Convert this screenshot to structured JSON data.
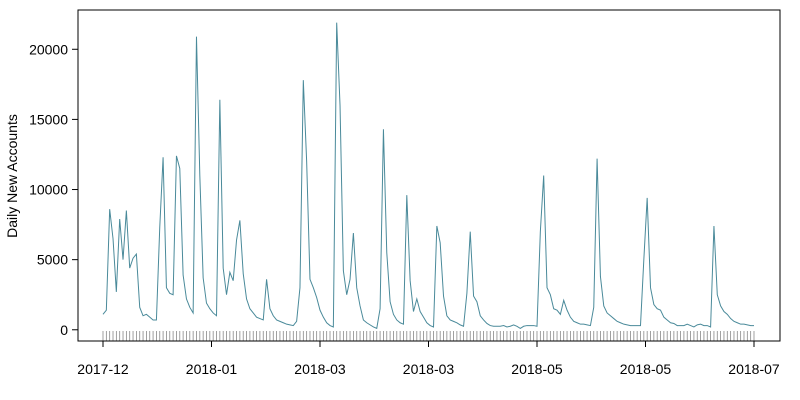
{
  "chart_data": {
    "type": "line",
    "title": "",
    "xlabel": "",
    "ylabel": "Daily New Accounts",
    "x_tick_labels": [
      "2017-12",
      "2018-01",
      "2018-03",
      "2018-03",
      "2018-05",
      "2018-05",
      "2018-07"
    ],
    "y_ticks": [
      0,
      5000,
      10000,
      15000,
      20000
    ],
    "ylim": [
      -800,
      22800
    ],
    "grid": false,
    "rug": true,
    "colors": {
      "line": "#4a8a9a",
      "axis": "#000000",
      "rug": "#888888"
    },
    "series": [
      {
        "values": [
          1100,
          1400,
          8600,
          6500,
          2700,
          7900,
          5000,
          8500,
          4400,
          5100,
          5400,
          1600,
          1000,
          1100,
          900,
          700,
          700,
          7300,
          12300,
          3000,
          2600,
          2500,
          12400,
          11500,
          3900,
          2200,
          1600,
          1200,
          20900,
          11000,
          3700,
          1900,
          1500,
          1200,
          1000,
          16400,
          4400,
          2500,
          4100,
          3500,
          6400,
          7800,
          4000,
          2200,
          1500,
          1200,
          900,
          800,
          700,
          3600,
          1500,
          1000,
          700,
          600,
          500,
          400,
          350,
          300,
          600,
          3000,
          17800,
          12000,
          3600,
          3000,
          2300,
          1400,
          900,
          500,
          300,
          200,
          21900,
          16000,
          4200,
          2500,
          3600,
          6900,
          3000,
          1700,
          700,
          500,
          350,
          200,
          100,
          1500,
          14300,
          5500,
          2000,
          1100,
          700,
          500,
          400,
          9600,
          3500,
          1300,
          2200,
          1300,
          900,
          500,
          300,
          200,
          7400,
          6200,
          2400,
          1000,
          700,
          600,
          500,
          350,
          250,
          2600,
          7000,
          2400,
          2000,
          1000,
          700,
          450,
          300,
          250,
          250,
          250,
          300,
          200,
          250,
          350,
          250,
          100,
          250,
          300,
          300,
          300,
          250,
          7000,
          11000,
          3000,
          2500,
          1500,
          1400,
          1100,
          2100,
          1400,
          900,
          600,
          500,
          400,
          400,
          350,
          300,
          1600,
          12200,
          3800,
          1700,
          1200,
          1000,
          800,
          600,
          500,
          400,
          350,
          300,
          300,
          300,
          300,
          5000,
          9400,
          3000,
          1800,
          1500,
          1400,
          900,
          700,
          500,
          450,
          300,
          300,
          300,
          400,
          300,
          200,
          350,
          400,
          300,
          300,
          200,
          7400,
          2500,
          1700,
          1300,
          1100,
          800,
          600,
          500,
          400,
          400,
          350,
          300,
          300
        ]
      }
    ]
  }
}
